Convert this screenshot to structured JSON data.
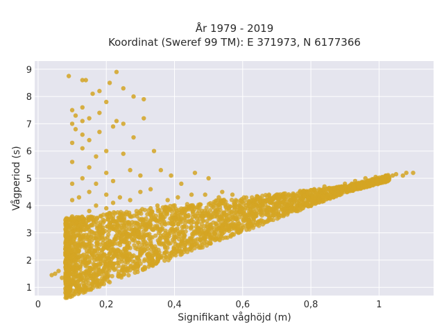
{
  "chart_data": {
    "type": "scatter",
    "title_line1": "År 1979 - 2019",
    "title_line2": "Koordinat (Sweref 99 TM): E 371973, N 6177366",
    "xlabel": "Signifikant våghöjd (m)",
    "ylabel": "Vågperiod (s)",
    "xlim": [
      -0.01,
      1.16
    ],
    "ylim": [
      0.7,
      9.3
    ],
    "xticks": [
      {
        "value": 0,
        "label": "0"
      },
      {
        "value": 0.2,
        "label": "0,2"
      },
      {
        "value": 0.4,
        "label": "0,4"
      },
      {
        "value": 0.6,
        "label": "0,6"
      },
      {
        "value": 0.8,
        "label": "0,8"
      },
      {
        "value": 1,
        "label": "1"
      }
    ],
    "yticks": [
      {
        "value": 1,
        "label": "1"
      },
      {
        "value": 2,
        "label": "2"
      },
      {
        "value": 3,
        "label": "3"
      },
      {
        "value": 4,
        "label": "4"
      },
      {
        "value": 5,
        "label": "5"
      },
      {
        "value": 6,
        "label": "6"
      },
      {
        "value": 7,
        "label": "7"
      },
      {
        "value": 8,
        "label": "8"
      },
      {
        "value": 9,
        "label": "9"
      }
    ],
    "grid": true,
    "marker_color": "#D4A523",
    "plot_bg": "#E5E5EE",
    "series": [
      {
        "points": [
          [
            0.04,
            1.45
          ],
          [
            0.05,
            1.5
          ],
          [
            0.06,
            1.6
          ],
          [
            0.07,
            1.35
          ],
          [
            0.08,
            1.9
          ],
          [
            0.08,
            2.4
          ],
          [
            0.09,
            2.8
          ],
          [
            0.09,
            3.2
          ],
          [
            0.1,
            3.6
          ],
          [
            0.1,
            4.2
          ],
          [
            0.1,
            4.8
          ],
          [
            0.1,
            5.6
          ],
          [
            0.1,
            6.3
          ],
          [
            0.1,
            7.0
          ],
          [
            0.1,
            7.5
          ],
          [
            0.09,
            8.75
          ],
          [
            0.11,
            6.8
          ],
          [
            0.11,
            7.3
          ],
          [
            0.12,
            1.05
          ],
          [
            0.12,
            1.4
          ],
          [
            0.12,
            2.1
          ],
          [
            0.12,
            2.9
          ],
          [
            0.12,
            3.5
          ],
          [
            0.12,
            4.3
          ],
          [
            0.13,
            5.0
          ],
          [
            0.13,
            6.1
          ],
          [
            0.13,
            6.6
          ],
          [
            0.13,
            7.1
          ],
          [
            0.13,
            7.6
          ],
          [
            0.13,
            8.6
          ],
          [
            0.14,
            8.6
          ],
          [
            0.14,
            1.2
          ],
          [
            0.14,
            2.5
          ],
          [
            0.15,
            3.1
          ],
          [
            0.15,
            3.8
          ],
          [
            0.15,
            4.5
          ],
          [
            0.15,
            5.4
          ],
          [
            0.15,
            6.4
          ],
          [
            0.15,
            7.2
          ],
          [
            0.16,
            8.1
          ],
          [
            0.16,
            1.3
          ],
          [
            0.16,
            2.2
          ],
          [
            0.17,
            2.8
          ],
          [
            0.17,
            3.4
          ],
          [
            0.17,
            4.0
          ],
          [
            0.17,
            4.8
          ],
          [
            0.17,
            5.8
          ],
          [
            0.18,
            7.4
          ],
          [
            0.18,
            8.2
          ],
          [
            0.18,
            6.7
          ],
          [
            0.19,
            1.6
          ],
          [
            0.19,
            2.4
          ],
          [
            0.19,
            3.2
          ],
          [
            0.2,
            3.9
          ],
          [
            0.2,
            4.4
          ],
          [
            0.2,
            5.2
          ],
          [
            0.2,
            6.0
          ],
          [
            0.2,
            7.8
          ],
          [
            0.21,
            8.5
          ],
          [
            0.21,
            1.9
          ],
          [
            0.21,
            2.7
          ],
          [
            0.22,
            3.5
          ],
          [
            0.22,
            4.1
          ],
          [
            0.22,
            4.9
          ],
          [
            0.22,
            6.9
          ],
          [
            0.23,
            8.9
          ],
          [
            0.23,
            7.1
          ],
          [
            0.23,
            2.2
          ],
          [
            0.24,
            3.0
          ],
          [
            0.24,
            3.7
          ],
          [
            0.24,
            4.3
          ],
          [
            0.25,
            5.9
          ],
          [
            0.25,
            8.3
          ],
          [
            0.25,
            7.0
          ],
          [
            0.26,
            2.0
          ],
          [
            0.26,
            2.9
          ],
          [
            0.27,
            3.6
          ],
          [
            0.27,
            4.2
          ],
          [
            0.27,
            5.3
          ],
          [
            0.28,
            8.0
          ],
          [
            0.28,
            6.5
          ],
          [
            0.29,
            2.1
          ],
          [
            0.29,
            3.1
          ],
          [
            0.3,
            3.8
          ],
          [
            0.3,
            4.5
          ],
          [
            0.3,
            5.1
          ],
          [
            0.31,
            7.9
          ],
          [
            0.31,
            7.2
          ],
          [
            0.32,
            2.2
          ],
          [
            0.32,
            3.3
          ],
          [
            0.33,
            3.9
          ],
          [
            0.33,
            4.6
          ],
          [
            0.34,
            6.0
          ],
          [
            0.34,
            2.4
          ],
          [
            0.35,
            3.2
          ],
          [
            0.35,
            4.0
          ],
          [
            0.36,
            5.3
          ],
          [
            0.37,
            2.6
          ],
          [
            0.37,
            3.4
          ],
          [
            0.38,
            4.2
          ],
          [
            0.39,
            5.1
          ],
          [
            0.4,
            2.8
          ],
          [
            0.4,
            3.5
          ],
          [
            0.41,
            4.3
          ],
          [
            0.42,
            4.8
          ],
          [
            0.43,
            2.9
          ],
          [
            0.44,
            3.6
          ],
          [
            0.45,
            4.4
          ],
          [
            0.46,
            5.2
          ],
          [
            0.47,
            3.1
          ],
          [
            0.48,
            3.7
          ],
          [
            0.49,
            4.4
          ],
          [
            0.5,
            5.0
          ],
          [
            0.51,
            3.2
          ],
          [
            0.52,
            3.8
          ],
          [
            0.53,
            4.3
          ],
          [
            0.54,
            4.5
          ],
          [
            0.55,
            3.4
          ],
          [
            0.56,
            3.9
          ],
          [
            0.57,
            4.4
          ],
          [
            0.58,
            3.5
          ],
          [
            0.59,
            4.0
          ],
          [
            0.6,
            3.9
          ],
          [
            0.61,
            3.6
          ],
          [
            0.62,
            4.1
          ],
          [
            0.63,
            4.2
          ],
          [
            0.64,
            3.7
          ],
          [
            0.65,
            4.0
          ],
          [
            0.66,
            4.2
          ],
          [
            0.67,
            3.8
          ],
          [
            0.68,
            4.1
          ],
          [
            0.69,
            4.3
          ],
          [
            0.7,
            3.9
          ],
          [
            0.71,
            4.1
          ],
          [
            0.72,
            4.3
          ],
          [
            0.73,
            4.0
          ],
          [
            0.74,
            4.2
          ],
          [
            0.75,
            4.4
          ],
          [
            0.76,
            4.1
          ],
          [
            0.77,
            4.3
          ],
          [
            0.78,
            4.5
          ],
          [
            0.79,
            4.2
          ],
          [
            0.8,
            4.4
          ],
          [
            0.81,
            4.6
          ],
          [
            0.82,
            4.3
          ],
          [
            0.83,
            4.5
          ],
          [
            0.84,
            4.7
          ],
          [
            0.85,
            4.4
          ],
          [
            0.86,
            4.6
          ],
          [
            0.87,
            4.6
          ],
          [
            0.88,
            4.5
          ],
          [
            0.89,
            4.7
          ],
          [
            0.9,
            4.8
          ],
          [
            0.91,
            4.6
          ],
          [
            0.92,
            4.8
          ],
          [
            0.93,
            4.9
          ],
          [
            0.94,
            4.7
          ],
          [
            0.95,
            4.85
          ],
          [
            0.96,
            5.0
          ],
          [
            0.97,
            4.8
          ],
          [
            0.98,
            4.95
          ],
          [
            0.99,
            5.05
          ],
          [
            1.0,
            4.9
          ],
          [
            1.01,
            5.0
          ],
          [
            1.02,
            5.1
          ],
          [
            1.03,
            5.0
          ],
          [
            1.04,
            5.1
          ],
          [
            1.05,
            5.15
          ],
          [
            1.07,
            5.1
          ],
          [
            1.08,
            5.2
          ],
          [
            1.1,
            5.2
          ]
        ]
      }
    ]
  }
}
